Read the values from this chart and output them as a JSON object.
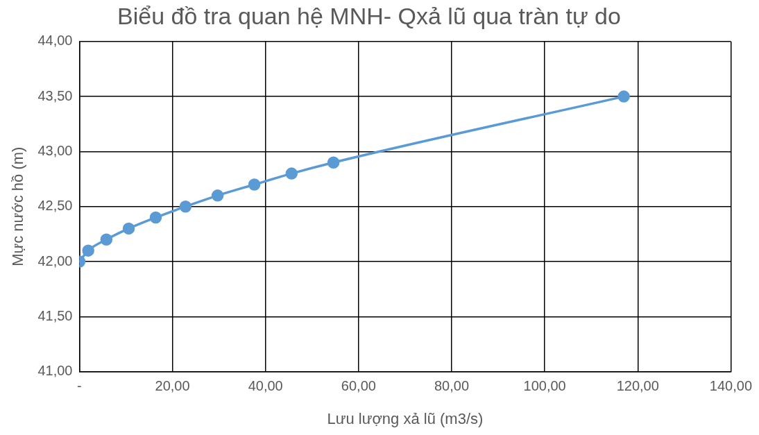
{
  "chart_data": {
    "type": "line",
    "title": "Biểu đồ tra quan hệ MNH- Qxả lũ qua tràn tự do",
    "xlabel": "Lưu lượng xả lũ (m3/s)",
    "ylabel": "Mực nước hồ (m)",
    "x": [
      0,
      1.9,
      5.8,
      10.6,
      16.4,
      22.8,
      29.7,
      37.6,
      45.6,
      54.6,
      117.0
    ],
    "series": [
      {
        "color": "#5b9bd5",
        "values": [
          42.0,
          42.1,
          42.2,
          42.3,
          42.4,
          42.5,
          42.6,
          42.7,
          42.8,
          42.9,
          43.5
        ]
      }
    ],
    "xlim": [
      0,
      140
    ],
    "xticks": [
      {
        "value": 0,
        "label": "-"
      },
      {
        "value": 20,
        "label": "20,00"
      },
      {
        "value": 40,
        "label": "40,00"
      },
      {
        "value": 60,
        "label": "60,00"
      },
      {
        "value": 80,
        "label": "80,00"
      },
      {
        "value": 100,
        "label": "100,00"
      },
      {
        "value": 120,
        "label": "120,00"
      },
      {
        "value": 140,
        "label": "140,00"
      }
    ],
    "ylim": [
      41,
      44
    ],
    "yticks": [
      {
        "value": 41,
        "label": "41,00"
      },
      {
        "value": 41.5,
        "label": "41,50"
      },
      {
        "value": 42,
        "label": "42,00"
      },
      {
        "value": 42.5,
        "label": "42,50"
      },
      {
        "value": 43,
        "label": "43,00"
      },
      {
        "value": 43.5,
        "label": "43,50"
      },
      {
        "value": 44,
        "label": "44,00"
      }
    ],
    "grid": true,
    "legend": false,
    "marker": "circle",
    "line_style": "solid"
  }
}
